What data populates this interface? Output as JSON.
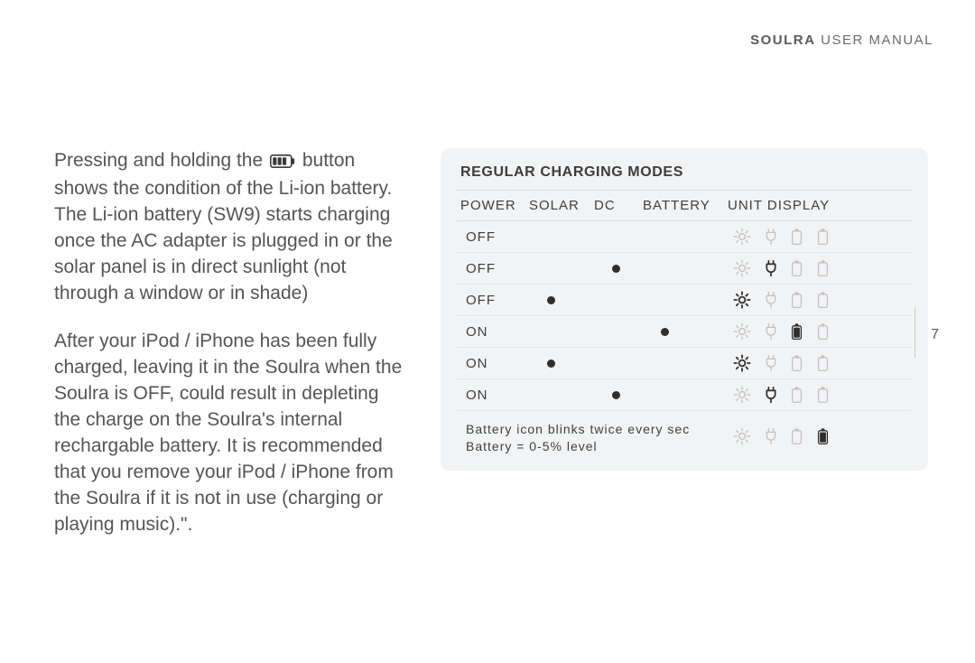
{
  "header": {
    "brand": "SOULRA",
    "rest": "USER MANUAL"
  },
  "page_number": "7",
  "left": {
    "p1a": "Pressing and holding the ",
    "p1b": " button shows the condition of the Li-ion battery. The Li-ion battery (SW9) starts charging once the AC adapter is plugged in or the solar panel is in direct sunlight (not through a window or in shade)",
    "p2": "After your iPod / iPhone has been fully charged, leaving it in the Soulra when the Soulra is OFF,  could result in depleting the charge on the Soulra's internal rechargable battery.  It is recommended that you remove your iPod / iPhone from the Soulra if it is not in use (charging or playing music).\"."
  },
  "table": {
    "title": "REGULAR CHARGING MODES",
    "columns": [
      "POWER",
      "SOLAR",
      "DC",
      "BATTERY",
      "UNIT DISPLAY"
    ],
    "rows": [
      {
        "power": "OFF",
        "solar": false,
        "dc": false,
        "battery": false,
        "icons": {
          "sun": "dim",
          "plug": "dim",
          "batt1": "dim",
          "batt2": "dim"
        }
      },
      {
        "power": "OFF",
        "solar": false,
        "dc": true,
        "battery": false,
        "icons": {
          "sun": "dim",
          "plug": "bold",
          "batt1": "dim",
          "batt2": "dim"
        }
      },
      {
        "power": "OFF",
        "solar": true,
        "dc": false,
        "battery": false,
        "icons": {
          "sun": "bold",
          "plug": "dim",
          "batt1": "dim",
          "batt2": "dim"
        }
      },
      {
        "power": "ON",
        "solar": false,
        "dc": false,
        "battery": true,
        "icons": {
          "sun": "dim",
          "plug": "dim",
          "batt1": "fill",
          "batt2": "dim"
        }
      },
      {
        "power": "ON",
        "solar": true,
        "dc": false,
        "battery": false,
        "icons": {
          "sun": "bold",
          "plug": "dim",
          "batt1": "dim",
          "batt2": "dim"
        }
      },
      {
        "power": "ON",
        "solar": false,
        "dc": true,
        "battery": false,
        "icons": {
          "sun": "dim",
          "plug": "bold",
          "batt1": "dim",
          "batt2": "dim"
        }
      }
    ],
    "footer": {
      "line1": "Battery icon blinks twice every sec",
      "line2": "Battery = 0-5% level",
      "icons": {
        "sun": "dim",
        "plug": "dim",
        "batt1": "dim",
        "batt2": "fill"
      }
    }
  },
  "colors": {
    "icon_dim": "#c2c2c2",
    "icon_bold": "#2e2e2e",
    "box_bg": "#f2f3f4"
  }
}
